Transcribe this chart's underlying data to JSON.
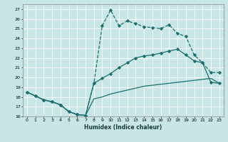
{
  "xlabel": "Humidex (Indice chaleur)",
  "xlim": [
    -0.5,
    23.5
  ],
  "ylim": [
    16,
    27.5
  ],
  "yticks": [
    16,
    17,
    18,
    19,
    20,
    21,
    22,
    23,
    24,
    25,
    26,
    27
  ],
  "xticks": [
    0,
    1,
    2,
    3,
    4,
    5,
    6,
    7,
    8,
    9,
    10,
    11,
    12,
    13,
    14,
    15,
    16,
    17,
    18,
    19,
    20,
    21,
    22,
    23
  ],
  "bg_color": "#c8e6e6",
  "grid_color": "#b0d4d4",
  "line_color": "#1a6e6e",
  "line1_x": [
    0,
    1,
    2,
    3,
    4,
    5,
    6,
    7,
    8,
    9,
    10,
    11,
    12,
    13,
    14,
    15,
    16,
    17,
    18,
    19,
    20,
    21,
    22,
    23
  ],
  "line1_y": [
    18.5,
    18.1,
    17.7,
    17.5,
    17.2,
    16.5,
    16.2,
    16.1,
    19.4,
    25.3,
    26.9,
    25.3,
    25.8,
    25.5,
    25.2,
    25.1,
    25.0,
    25.4,
    24.5,
    24.2,
    22.3,
    21.5,
    20.5,
    20.5
  ],
  "line2_x": [
    0,
    1,
    2,
    3,
    4,
    5,
    6,
    7,
    8,
    9,
    10,
    11,
    12,
    13,
    14,
    15,
    16,
    17,
    18,
    19,
    20,
    21,
    22,
    23
  ],
  "line2_y": [
    18.5,
    18.1,
    17.7,
    17.5,
    17.2,
    16.5,
    16.2,
    16.1,
    19.4,
    19.9,
    20.4,
    21.0,
    21.5,
    22.0,
    22.2,
    22.3,
    22.5,
    22.7,
    22.9,
    22.3,
    21.7,
    21.5,
    19.5,
    19.4
  ],
  "line3_x": [
    0,
    1,
    2,
    3,
    4,
    5,
    6,
    7,
    8,
    9,
    10,
    11,
    12,
    13,
    14,
    15,
    16,
    17,
    18,
    19,
    20,
    21,
    22,
    23
  ],
  "line3_y": [
    18.5,
    18.1,
    17.7,
    17.5,
    17.2,
    16.5,
    16.2,
    16.1,
    17.8,
    18.0,
    18.3,
    18.5,
    18.7,
    18.9,
    19.1,
    19.2,
    19.3,
    19.4,
    19.5,
    19.6,
    19.7,
    19.8,
    19.9,
    19.4
  ]
}
